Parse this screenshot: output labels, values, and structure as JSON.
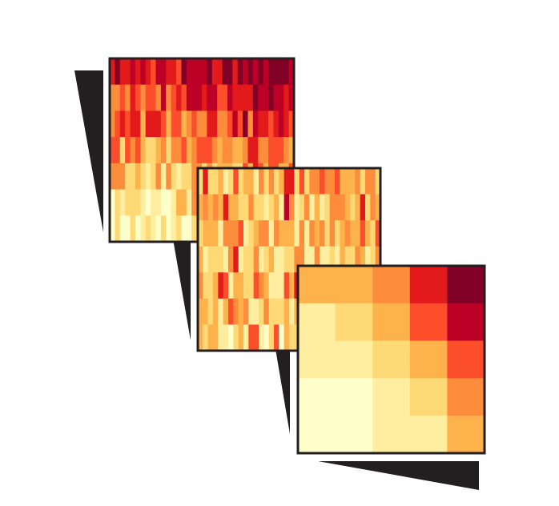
{
  "figure": {
    "palette": [
      "#ffffcc",
      "#ffeda0",
      "#fed976",
      "#feb24c",
      "#fd8d3c",
      "#fc4e2a",
      "#e31a1c",
      "#bd0026",
      "#800026"
    ],
    "frame_color": "#231f20",
    "wedge_color": "#231f20"
  },
  "panels": [
    {
      "name": "heatmap-panel-1",
      "rows": 7,
      "cols": 36,
      "pattern": "vertical-gradient-strong",
      "seed": 17
    },
    {
      "name": "heatmap-panel-2",
      "rows": 7,
      "cols": 36,
      "pattern": "noisy-mid",
      "seed": 53
    },
    {
      "name": "heatmap-panel-3",
      "rows": 5,
      "cols": 5,
      "levels": [
        [
          0.38,
          0.4,
          0.5,
          0.7,
          1.0
        ],
        [
          0.22,
          0.3,
          0.36,
          0.56,
          0.82
        ],
        [
          0.15,
          0.18,
          0.24,
          0.42,
          0.66
        ],
        [
          0.06,
          0.08,
          0.14,
          0.32,
          0.52
        ],
        [
          0.04,
          0.06,
          0.12,
          0.22,
          0.42
        ]
      ]
    }
  ]
}
